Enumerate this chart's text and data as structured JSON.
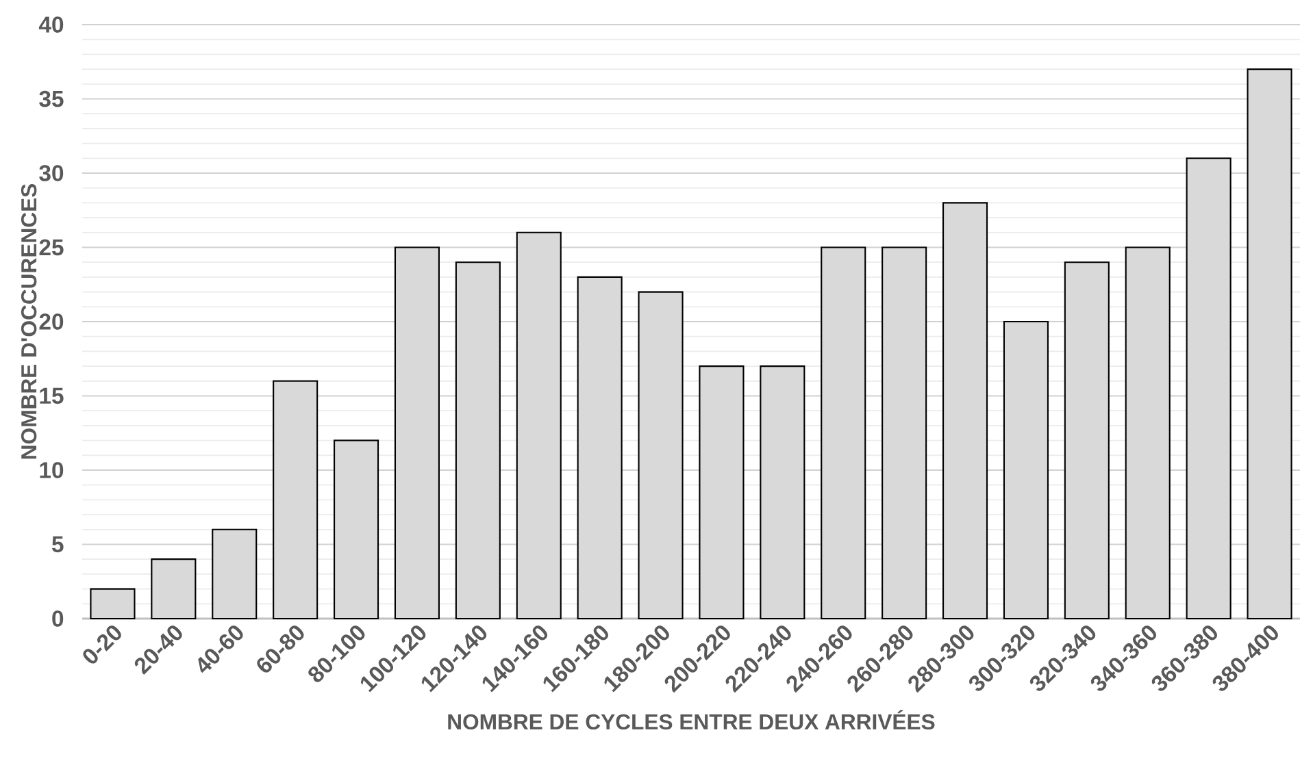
{
  "chart_data": {
    "type": "bar",
    "xlabel": "NOMBRE DE CYCLES ENTRE DEUX ARRIVÉES",
    "ylabel": "NOMBRE D'OCCURENCES",
    "categories": [
      "0-20",
      "20-40",
      "40-60",
      "60-80",
      "80-100",
      "100-120",
      "120-140",
      "140-160",
      "160-180",
      "180-200",
      "200-220",
      "220-240",
      "240-260",
      "260-280",
      "280-300",
      "300-320",
      "320-340",
      "340-360",
      "360-380",
      "380-400"
    ],
    "values": [
      2,
      4,
      6,
      16,
      12,
      25,
      24,
      26,
      23,
      22,
      17,
      17,
      25,
      25,
      28,
      20,
      24,
      25,
      31,
      37
    ],
    "color": "#d9d9d9",
    "ylim": [
      0,
      40
    ],
    "yticks": [
      0,
      5,
      10,
      15,
      20,
      25,
      30,
      35,
      40
    ],
    "grid": "y"
  }
}
